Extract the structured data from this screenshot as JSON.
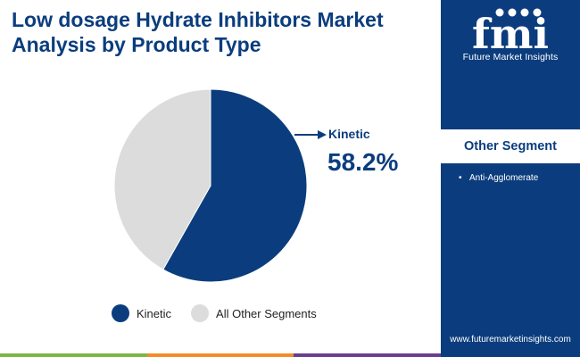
{
  "title": "Low dosage Hydrate Inhibitors Market Analysis by Product Type",
  "brand": {
    "logo_letters": "fmi",
    "name": "Future Market Insights",
    "website": "www.futuremarketinsights.com"
  },
  "sidebar": {
    "other_segment_title": "Other Segment",
    "items": [
      "Anti-Agglomerate"
    ]
  },
  "callout": {
    "label": "Kinetic",
    "value": "58.2%"
  },
  "colors": {
    "primary": "#0b3d7e",
    "secondary": "#dcdcdc",
    "bar_green": "#7ab648",
    "bar_orange": "#f28c28",
    "bar_purple": "#6a3d8f"
  },
  "chart_data": {
    "type": "pie",
    "title": "Low dosage Hydrate Inhibitors Market Analysis by Product Type",
    "slices": [
      {
        "label": "Kinetic",
        "value": 58.2,
        "color": "#0b3d7e"
      },
      {
        "label": "All Other Segments",
        "value": 41.8,
        "color": "#dcdcdc"
      }
    ],
    "legend_position": "bottom",
    "annotations": [
      {
        "target": "Kinetic",
        "text": "58.2%"
      }
    ]
  }
}
